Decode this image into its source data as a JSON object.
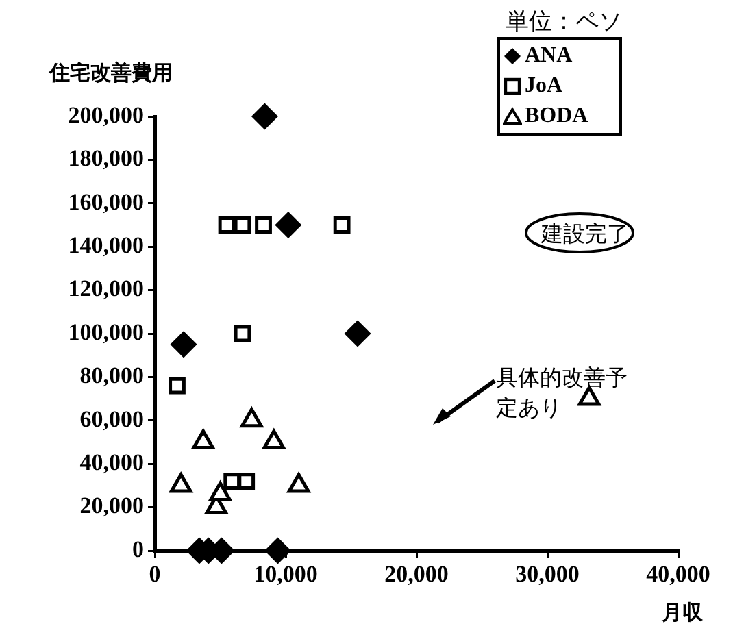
{
  "chart_data": {
    "type": "scatter",
    "xlabel": "月収",
    "ylabel": "住宅改善費用",
    "legend_title": "単位：ペソ",
    "legend": "top right",
    "grid": false,
    "xlim": [
      0,
      40000
    ],
    "xticks": [
      {
        "value": 0,
        "label": "0"
      },
      {
        "value": 10000,
        "label": "10,000"
      },
      {
        "value": 20000,
        "label": "20,000"
      },
      {
        "value": 30000,
        "label": "30,000"
      },
      {
        "value": 40000,
        "label": "40,000"
      }
    ],
    "ylim": [
      0,
      200000
    ],
    "yticks": [
      {
        "value": 0,
        "label": "0"
      },
      {
        "value": 20000,
        "label": "20,000"
      },
      {
        "value": 40000,
        "label": "40,000"
      },
      {
        "value": 60000,
        "label": "60,000"
      },
      {
        "value": 80000,
        "label": "80,000"
      },
      {
        "value": 100000,
        "label": "100,000"
      },
      {
        "value": 120000,
        "label": "120,000"
      },
      {
        "value": 140000,
        "label": "140,000"
      },
      {
        "value": 160000,
        "label": "160,000"
      },
      {
        "value": 180000,
        "label": "180,000"
      },
      {
        "value": 200000,
        "label": "200,000"
      }
    ],
    "series": [
      {
        "name": "ANA",
        "color": "#000000",
        "marker": "diamond",
        "x": [
          8400,
          10200,
          15500,
          2200,
          3400,
          4100,
          5100,
          9400
        ],
        "values": [
          200000,
          150000,
          100000,
          95000,
          0,
          0,
          0,
          0
        ]
      },
      {
        "name": "JoA",
        "color": "#000000",
        "marker": "square",
        "x": [
          5500,
          6700,
          8300,
          14300,
          6700,
          1700,
          5900,
          7000
        ],
        "values": [
          150000,
          150000,
          150000,
          150000,
          100000,
          76000,
          32000,
          32000
        ]
      },
      {
        "name": "BODA",
        "color": "#000000",
        "marker": "triangle",
        "x": [
          2000,
          3700,
          4700,
          5000,
          7400,
          9100,
          11000,
          33200
        ],
        "values": [
          30000,
          50000,
          20000,
          26000,
          60000,
          50000,
          30000,
          70000
        ]
      }
    ],
    "annotations": [
      "建設完了",
      "具体的改善予定あり"
    ]
  }
}
